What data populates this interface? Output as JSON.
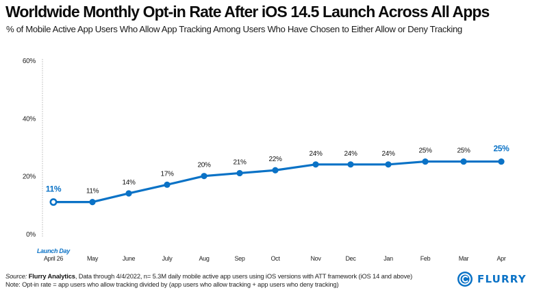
{
  "header": {
    "title": "Worldwide Monthly Opt-in Rate After iOS 14.5 Launch Across All Apps",
    "subtitle": "% of Mobile Active App Users Who Allow App Tracking Among Users Who Have Chosen to Either Allow or Deny Tracking"
  },
  "chart_data": {
    "type": "line",
    "title": "Worldwide Monthly Opt-in Rate After iOS 14.5 Launch Across All Apps",
    "subtitle": "% of Mobile Active App Users Who Allow App Tracking Among Users Who Have Chosen to Either Allow or Deny Tracking",
    "xlabel": "",
    "ylabel": "",
    "categories": [
      "April 26",
      "May",
      "June",
      "July",
      "Aug",
      "Sep",
      "Oct",
      "Nov",
      "Dec",
      "Jan",
      "Feb",
      "Mar",
      "Apr"
    ],
    "launch_annotation": "Launch Day",
    "series": [
      {
        "name": "Opt-in Rate",
        "values": [
          11,
          11,
          14,
          17,
          20,
          21,
          22,
          24,
          24,
          24,
          25,
          25,
          25
        ],
        "labels": [
          "11%",
          "11%",
          "14%",
          "17%",
          "20%",
          "21%",
          "22%",
          "24%",
          "24%",
          "24%",
          "25%",
          "25%",
          "25%"
        ],
        "highlight_indices": [
          0,
          12
        ],
        "color": "#0a72c6"
      }
    ],
    "ylim": [
      0,
      60
    ],
    "yticks": [
      0,
      20,
      40,
      60
    ],
    "ytick_labels": [
      "0%",
      "20%",
      "40%",
      "60%"
    ],
    "grid": false,
    "legend": "none"
  },
  "footer": {
    "source_prefix": "Source: ",
    "source_name": "Flurry Analytics",
    "source_rest": ", Data through 4/4/2022, n= 5.3M daily mobile active app users using iOS versions with ATT framework (iOS 14 and above)",
    "note": "Note: Opt-in rate = app users who allow tracking divided by (app users who allow tracking + app users who deny tracking)"
  },
  "logo": {
    "text": "FLURRY",
    "icon": "flurry-swirl-icon",
    "color": "#0a72c6"
  },
  "colors": {
    "accent": "#0a72c6",
    "text": "#111111",
    "axis": "#bbbbbb"
  }
}
